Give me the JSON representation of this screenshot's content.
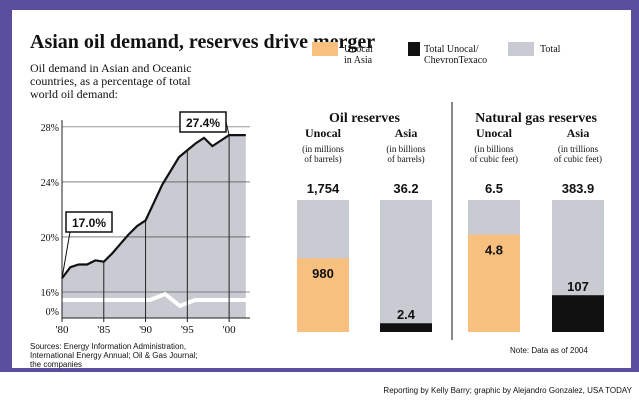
{
  "title": "Asian oil demand, reserves drive merger",
  "legend": [
    {
      "name": [
        "Unocal",
        "in Asia"
      ],
      "color": "#f7c07f"
    },
    {
      "name": [
        "Total Unocal/",
        "ChevronTexaco"
      ],
      "color": "#111111"
    },
    {
      "name": [
        "Total"
      ],
      "color": "#c8cbd2"
    }
  ],
  "sources": [
    "Sources: Energy Information Administration,",
    "International Energy Annual; Oil & Gas Journal;",
    "the companies"
  ],
  "note": "Note: Data as of 2004",
  "credit": "Reporting by Kelly Barry; graphic by Alejandro Gonzalez, USA TODAY",
  "chart_data": [
    {
      "type": "line",
      "subtitle": [
        "Oil demand in Asian and Oceanic",
        "countries, as a percentage of total",
        "world oil demand:"
      ],
      "x": [
        1980,
        1981,
        1982,
        1983,
        1984,
        1985,
        1986,
        1987,
        1988,
        1989,
        1990,
        1991,
        1992,
        1993,
        1994,
        1995,
        1996,
        1997,
        1998,
        1999,
        2000,
        2001,
        2002
      ],
      "values": [
        17.0,
        17.8,
        18.0,
        18.0,
        18.3,
        18.2,
        18.8,
        19.5,
        20.2,
        20.8,
        21.2,
        22.5,
        23.8,
        24.8,
        25.8,
        26.3,
        26.8,
        27.2,
        26.6,
        27.0,
        27.4,
        27.4,
        27.4
      ],
      "color": "#111111",
      "fill": "#c8cbd2",
      "xlim": [
        1980,
        2002.5
      ],
      "xticks": [
        {
          "value": 1980,
          "label": "'80"
        },
        {
          "value": 1985,
          "label": "'85"
        },
        {
          "value": 1990,
          "label": "'90"
        },
        {
          "value": 1995,
          "label": "'95"
        },
        {
          "value": 2000,
          "label": "'00"
        }
      ],
      "ylim": [
        16,
        28.5
      ],
      "yticks": [
        {
          "value": 16,
          "label": "16%"
        },
        {
          "value": 20,
          "label": "20%"
        },
        {
          "value": 24,
          "label": "24%"
        },
        {
          "value": 28,
          "label": "28%"
        }
      ],
      "baseline_tick": {
        "value": 0,
        "label": "0%"
      },
      "annotations": [
        {
          "index": 0,
          "label": "17.0%"
        },
        {
          "index": 20,
          "label": "27.4%"
        }
      ],
      "grid": true
    },
    {
      "type": "stacked-bar",
      "title": "Oil reserves",
      "categories": [
        "Unocal",
        "Asia"
      ],
      "units": [
        [
          "(in millions",
          "of barrels)"
        ],
        [
          "(in billions",
          "of barrels)"
        ]
      ],
      "totals": [
        1754,
        36.2
      ],
      "total_labels": [
        "1,754",
        "36.2"
      ],
      "parts": [
        980,
        2.4
      ],
      "part_colors": [
        "#f7c07f",
        "#111111"
      ],
      "total_color": "#c8cbd2"
    },
    {
      "type": "stacked-bar",
      "title": "Natural gas reserves",
      "categories": [
        "Unocal",
        "Asia"
      ],
      "units": [
        [
          "(in billions",
          "of cubic feet)"
        ],
        [
          "(in trillions",
          "of cubic feet)"
        ]
      ],
      "totals": [
        6.5,
        383.9
      ],
      "parts": [
        4.8,
        107
      ],
      "part_colors": [
        "#f7c07f",
        "#111111"
      ],
      "total_color": "#c8cbd2"
    }
  ]
}
